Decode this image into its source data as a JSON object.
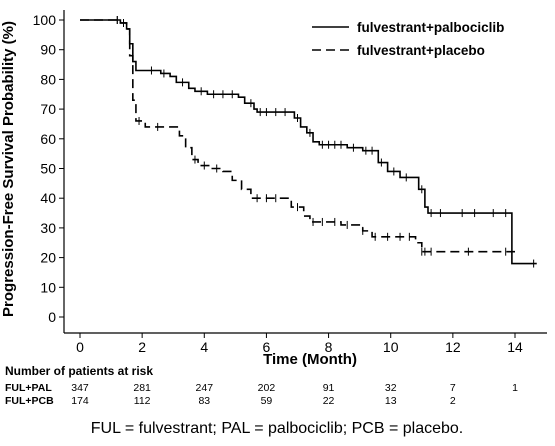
{
  "chart_data": {
    "type": "line",
    "subtype": "kaplan-meier step curve with censor marks",
    "ylabel": "Progression-Free Survival Probability (%)",
    "xlabel": "Time (Month)",
    "xlim": [
      0,
      15
    ],
    "ylim": [
      0,
      100
    ],
    "x_ticks": [
      0,
      2,
      4,
      6,
      8,
      10,
      12,
      14
    ],
    "y_ticks": [
      0,
      10,
      20,
      30,
      40,
      50,
      60,
      70,
      80,
      90,
      100
    ],
    "grid": false,
    "legend_position": "top-right",
    "series": [
      {
        "name": "fulvestrant+palbociclib",
        "style": "solid",
        "color": "#000000",
        "steps": [
          [
            0,
            100
          ],
          [
            1.3,
            99
          ],
          [
            1.5,
            97
          ],
          [
            1.6,
            92
          ],
          [
            1.7,
            86
          ],
          [
            1.8,
            83
          ],
          [
            2.6,
            82
          ],
          [
            2.9,
            81
          ],
          [
            3.1,
            79
          ],
          [
            3.5,
            77
          ],
          [
            3.7,
            76
          ],
          [
            4.1,
            75
          ],
          [
            5.1,
            74
          ],
          [
            5.3,
            72
          ],
          [
            5.6,
            70
          ],
          [
            5.7,
            69
          ],
          [
            6.9,
            67
          ],
          [
            7.1,
            64
          ],
          [
            7.3,
            62
          ],
          [
            7.5,
            59
          ],
          [
            7.7,
            58
          ],
          [
            8.6,
            57
          ],
          [
            9.1,
            56
          ],
          [
            9.6,
            52
          ],
          [
            9.9,
            49
          ],
          [
            10.3,
            47
          ],
          [
            10.9,
            43
          ],
          [
            11.1,
            37
          ],
          [
            11.2,
            35
          ],
          [
            13.9,
            18
          ],
          [
            14.7,
            18
          ]
        ],
        "censor_times": [
          1.2,
          1.4,
          2.3,
          2.7,
          3.3,
          3.9,
          4.3,
          4.6,
          4.9,
          5.5,
          5.8,
          6.0,
          6.3,
          6.6,
          7.0,
          7.4,
          7.8,
          8.0,
          8.2,
          8.4,
          8.8,
          9.2,
          9.4,
          9.7,
          10.1,
          10.5,
          11.0,
          11.3,
          11.6,
          12.3,
          12.7,
          13.3,
          13.7,
          14.6
        ]
      },
      {
        "name": "fulvestrant+placebo",
        "style": "dashed",
        "color": "#000000",
        "steps": [
          [
            0,
            100
          ],
          [
            1.3,
            99
          ],
          [
            1.5,
            97
          ],
          [
            1.6,
            88
          ],
          [
            1.7,
            73
          ],
          [
            1.8,
            66
          ],
          [
            2.1,
            64
          ],
          [
            3.2,
            61
          ],
          [
            3.4,
            57
          ],
          [
            3.6,
            53
          ],
          [
            3.8,
            51
          ],
          [
            4.2,
            50
          ],
          [
            4.6,
            49
          ],
          [
            4.9,
            46
          ],
          [
            5.2,
            43
          ],
          [
            5.5,
            40
          ],
          [
            6.8,
            37
          ],
          [
            7.2,
            34
          ],
          [
            7.4,
            32
          ],
          [
            8.4,
            31
          ],
          [
            9.1,
            29
          ],
          [
            9.4,
            27
          ],
          [
            10.8,
            25
          ],
          [
            11.0,
            22
          ],
          [
            14.0,
            22
          ]
        ],
        "censor_times": [
          1.2,
          1.9,
          2.5,
          3.7,
          4.0,
          4.4,
          5.7,
          6.0,
          6.3,
          7.0,
          7.5,
          7.8,
          8.2,
          8.6,
          9.1,
          9.5,
          9.9,
          10.3,
          10.6,
          11.0,
          11.1,
          11.3,
          12.5,
          13.7
        ]
      }
    ],
    "risk_table": {
      "title": "Number of patients at risk",
      "times": [
        0,
        2,
        4,
        6,
        8,
        10,
        12,
        14
      ],
      "rows": [
        {
          "label": "FUL+PAL",
          "values": [
            "347",
            "281",
            "247",
            "202",
            "91",
            "32",
            "7",
            "1"
          ]
        },
        {
          "label": "FUL+PCB",
          "values": [
            "174",
            "112",
            "83",
            "59",
            "22",
            "13",
            "2",
            ""
          ]
        }
      ]
    },
    "footnote": "FUL = fulvestrant; PAL = palbociclib; PCB = placebo."
  }
}
